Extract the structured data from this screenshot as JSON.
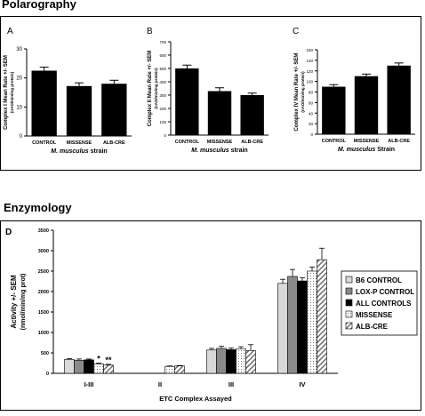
{
  "page": {
    "section_polarography": "Polarography",
    "section_enzymology": "Enzymology"
  },
  "colors": {
    "bar": "#000000",
    "axis": "#000000"
  },
  "chart_data": [
    {
      "type": "bar",
      "panel": "A",
      "categories": [
        "CONTROL",
        "MISSENSE",
        "ALB-CRE"
      ],
      "values": [
        22.5,
        17.2,
        18.0
      ],
      "errors": [
        1.2,
        1.1,
        1.2
      ],
      "marks": [
        "",
        "*",
        ""
      ],
      "xlabel_italic": "M. musculus",
      "xlabel_rest": " strain",
      "ylabel": "Complex I Mean Rate +/- SEM",
      "ylabel2": "(nAO/min/mg protein)",
      "ylim": [
        0,
        30
      ],
      "yticks": [
        0,
        10,
        20,
        30
      ]
    },
    {
      "type": "bar",
      "panel": "B",
      "categories": [
        "CONTROL",
        "MISSENSE",
        "ALB-CRE"
      ],
      "values": [
        500,
        330,
        300
      ],
      "errors": [
        25,
        25,
        15
      ],
      "marks": [
        "*",
        "*",
        ""
      ],
      "xlabel_italic": "M. musculus",
      "xlabel_rest": " strain",
      "ylabel": "Complex II Mean Rate +/- SEM",
      "ylabel2": "(nAO/min/mg protein)",
      "ylim": [
        0,
        700
      ],
      "yticks": [
        0,
        100,
        200,
        300,
        400,
        500,
        600,
        700
      ]
    },
    {
      "type": "bar",
      "panel": "C",
      "categories": [
        "CONTROL",
        "MISSENSE",
        "ALB-CRE"
      ],
      "values": [
        90,
        110,
        130
      ],
      "errors": [
        4,
        4,
        5
      ],
      "marks": [
        "",
        "",
        "*"
      ],
      "xlabel_italic": "M. musculus",
      "xlabel_rest": " Strain",
      "ylabel": "Complex IV Mean Rate +/- SEM",
      "ylabel2": "(nAO/min/mg protein)",
      "ylim": [
        0,
        160
      ],
      "yticks": [
        0,
        20,
        40,
        60,
        80,
        100,
        120,
        140,
        160
      ]
    },
    {
      "type": "bar",
      "panel": "D",
      "categories": [
        "I-III",
        "II",
        "III",
        "IV"
      ],
      "series": [
        {
          "name": "B6 CONTROL",
          "values": [
            340,
            null,
            570,
            2200
          ],
          "errors": [
            20,
            null,
            40,
            100
          ]
        },
        {
          "name": "LOX-P CONTROL",
          "values": [
            320,
            null,
            610,
            2370
          ],
          "errors": [
            30,
            null,
            50,
            170
          ]
        },
        {
          "name": "ALL CONTROLS",
          "values": [
            330,
            null,
            580,
            2260
          ],
          "errors": [
            20,
            null,
            40,
            80
          ]
        },
        {
          "name": "MISSENSE",
          "values": [
            230,
            170,
            600,
            2500
          ],
          "errors": [
            20,
            10,
            50,
            100
          ]
        },
        {
          "name": "ALB-CRE",
          "values": [
            200,
            180,
            560,
            2780
          ],
          "errors": [
            20,
            10,
            140,
            280
          ]
        }
      ],
      "marks": [
        [
          "",
          "",
          "",
          "*",
          "**"
        ],
        [
          "",
          "",
          "",
          "",
          ""
        ],
        [
          "",
          "",
          "",
          "",
          ""
        ],
        [
          "",
          "",
          "",
          "",
          ""
        ]
      ],
      "xlabel": "ETC Complex Assayed",
      "ylabel": "Activity +/- SEM",
      "ylabel2": "(nmol/min/mg prot)",
      "ylim": [
        0,
        3500
      ],
      "yticks": [
        0,
        500,
        1000,
        1500,
        2000,
        2500,
        3000,
        3500
      ],
      "legend_position": "right"
    }
  ]
}
